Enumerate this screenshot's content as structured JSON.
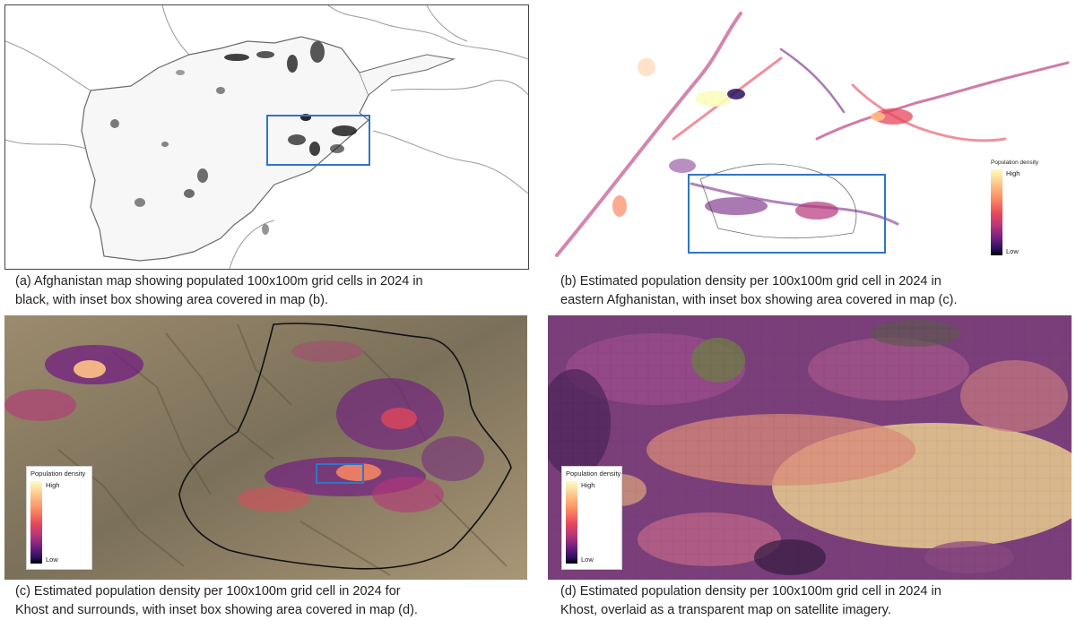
{
  "figure": {
    "panels": [
      {
        "id": "a",
        "caption_lines": [
          "(a) Afghanistan map showing populated 100x100m grid cells in 2024 in",
          "black, with inset box showing area covered in map (b)."
        ]
      },
      {
        "id": "b",
        "caption_lines": [
          "(b) Estimated population density per 100x100m grid cell in 2024 in",
          "eastern Afghanistan, with inset box showing area covered in map (c)."
        ],
        "legend": {
          "title": "Population density",
          "high": "High",
          "low": "Low"
        }
      },
      {
        "id": "c",
        "caption_lines": [
          "(c) Estimated population density per 100x100m grid cell in 2024 for",
          "Khost and surrounds, with inset box showing area covered in map (d)."
        ],
        "legend": {
          "title": "Population density",
          "high": "High",
          "low": "Low"
        }
      },
      {
        "id": "d",
        "caption_lines": [
          "(d) Estimated population density per 100x100m grid cell in 2024 in",
          "Khost, overlaid as a transparent map on satellite imagery."
        ],
        "legend": {
          "title": "Population density",
          "high": "High",
          "low": "Low"
        }
      }
    ],
    "colors": {
      "inset_box": "#2f76c8",
      "density_ramp": [
        "#fcfdbf",
        "#fec287",
        "#fb8861",
        "#e5475c",
        "#b5367a",
        "#721f81",
        "#2d1160",
        "#000004"
      ],
      "terrain": "#8d8066",
      "map_border": "#555555"
    }
  }
}
